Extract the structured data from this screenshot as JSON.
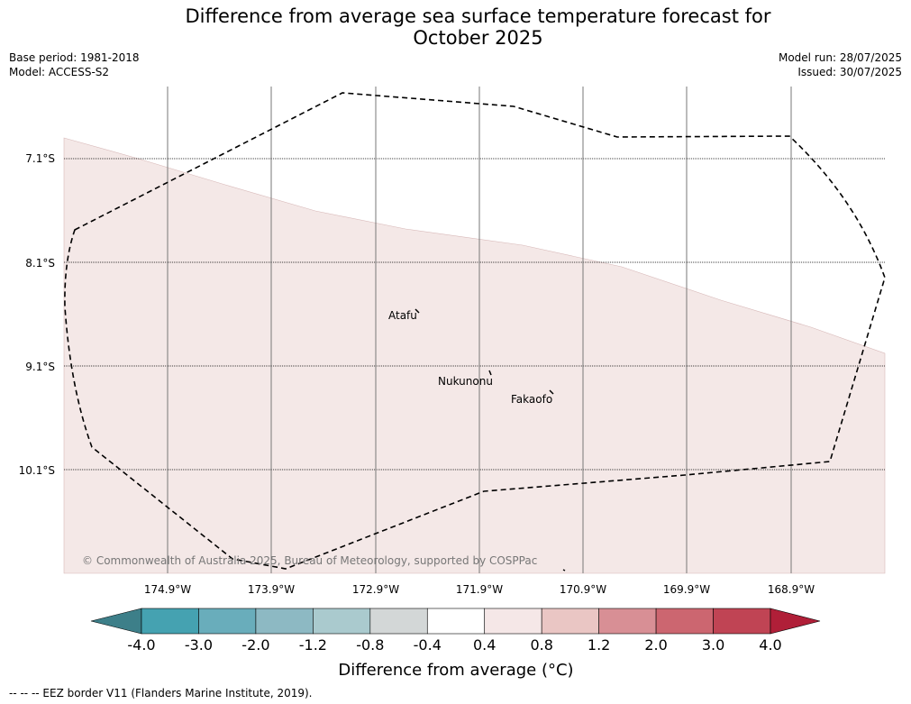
{
  "title_line1": "Difference from average sea surface temperature forecast for",
  "title_line2": "October 2025",
  "base_period": "Base period: 1981-2018",
  "model": "Model: ACCESS-S2",
  "model_run": "Model run: 28/07/2025",
  "issued": "Issued: 30/07/2025",
  "lat_labels": [
    "7.1°S",
    "8.1°S",
    "9.1°S",
    "10.1°S"
  ],
  "lon_labels": [
    "174.9°W",
    "173.9°W",
    "172.9°W",
    "171.9°W",
    "170.9°W",
    "169.9°W",
    "168.9°W"
  ],
  "places": [
    "Atafu",
    "Nukunonu",
    "Fakaofo"
  ],
  "copyright": "© Commonwealth of Australia 2025, Bureau of Meteorology, supported by COSPPac",
  "colorbar": {
    "ticks": [
      "-4.0",
      "-3.0",
      "-2.0",
      "-1.2",
      "-0.8",
      "-0.4",
      "0.4",
      "0.8",
      "1.2",
      "2.0",
      "3.0",
      "4.0"
    ],
    "colors": [
      "#3d7f89",
      "#45a2b1",
      "#69adbb",
      "#8db9c3",
      "#aacace",
      "#d3d7d7",
      "#ffffff",
      "#f5e7e7",
      "#eac6c4",
      "#d88f95",
      "#cc6670",
      "#c04454",
      "#b01f38"
    ],
    "label": "Difference from average (°C)"
  },
  "footer": "--  --  -- EEZ border V11 (Flanders Marine Institute, 2019).",
  "shading_color": "#f4e8e7"
}
